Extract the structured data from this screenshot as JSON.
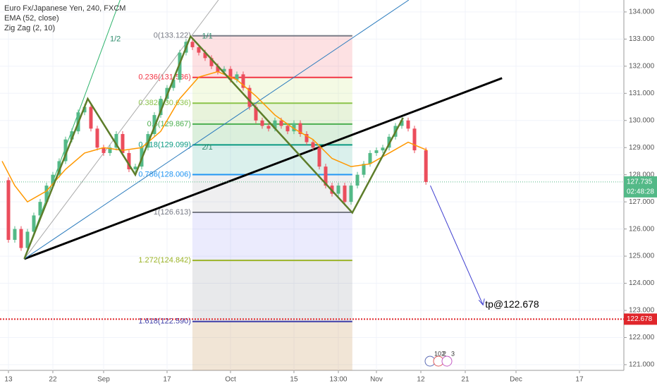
{
  "chart_data": {
    "type": "candlestick",
    "xlim": [
      -1.33,
      97
    ],
    "ylim": [
      120.79,
      134.44
    ],
    "grid": true,
    "xticks": [
      {
        "value": 0,
        "label": "13"
      },
      {
        "value": 7,
        "label": "22"
      },
      {
        "value": 15,
        "label": "Sep"
      },
      {
        "value": 25,
        "label": "17"
      },
      {
        "value": 35,
        "label": "Oct"
      },
      {
        "value": 45,
        "label": "15"
      },
      {
        "value": 52,
        "label": "13:00"
      },
      {
        "value": 58,
        "label": "Nov"
      },
      {
        "value": 65,
        "label": "12"
      },
      {
        "value": 72,
        "label": "21"
      },
      {
        "value": 80,
        "label": "Dec"
      },
      {
        "value": 90,
        "label": "17"
      }
    ],
    "yticks": [
      {
        "value": 121,
        "label": "121.000"
      },
      {
        "value": 122,
        "label": "122.000"
      },
      {
        "value": 123,
        "label": "123.000"
      },
      {
        "value": 124,
        "label": "124.000"
      },
      {
        "value": 125,
        "label": "125.000"
      },
      {
        "value": 126,
        "label": "126.000"
      },
      {
        "value": 127,
        "label": "127.000"
      },
      {
        "value": 128,
        "label": "128.000"
      },
      {
        "value": 129,
        "label": "129.000"
      },
      {
        "value": 130,
        "label": "130.000"
      },
      {
        "value": 131,
        "label": "131.000"
      },
      {
        "value": 132,
        "label": "132.000"
      },
      {
        "value": 133,
        "label": "133.000"
      },
      {
        "value": 134,
        "label": "134.000"
      }
    ],
    "series": [
      {
        "name": "Euro Fx/Japanese Yen, 240, FXCM",
        "up_color": "#53b987",
        "down_color": "#eb4d5c",
        "x": [
          -1,
          0,
          1,
          2,
          3,
          4,
          5,
          6,
          7,
          8,
          9,
          10,
          11,
          12,
          13,
          14,
          15,
          16,
          17,
          18,
          19,
          20,
          21,
          22,
          23,
          24,
          25,
          26,
          27,
          28,
          29,
          30,
          31,
          32,
          33,
          34,
          35,
          36,
          37,
          38,
          39,
          40,
          41,
          42,
          43,
          44,
          45,
          46,
          47,
          48,
          49,
          50,
          51,
          52,
          53,
          54,
          55,
          56,
          57,
          58,
          59,
          60,
          61,
          62,
          63,
          64,
          65.8
        ],
        "values": [
          127.8,
          125.6,
          126.0,
          125.3,
          125.9,
          126.5,
          127.0,
          127.6,
          128.0,
          128.5,
          129.3,
          129.6,
          130.3,
          130.5,
          129.7,
          129.0,
          128.8,
          129.0,
          129.5,
          128.8,
          128.2,
          128.3,
          129.0,
          129.5,
          130.2,
          130.8,
          131.2,
          131.5,
          132.5,
          132.9,
          132.7,
          132.5,
          132.3,
          132.0,
          131.8,
          131.9,
          131.5,
          131.7,
          131.2,
          130.5,
          130.0,
          129.8,
          129.7,
          130.0,
          129.8,
          129.6,
          129.9,
          129.5,
          129.2,
          129.0,
          128.3,
          127.6,
          127.3,
          127.6,
          127.0,
          127.6,
          128.0,
          128.4,
          128.8,
          128.9,
          129.0,
          129.4,
          129.8,
          130.0,
          129.7,
          128.9,
          127.735
        ]
      },
      {
        "name": "EMA (52, close)",
        "color": "#ff9800",
        "x": [
          -1,
          1,
          3,
          6,
          9,
          12,
          15,
          18,
          21,
          24,
          27,
          30,
          33,
          36,
          39,
          42,
          45,
          48,
          51,
          54,
          57,
          60,
          63,
          66
        ],
        "values": [
          128.5,
          127.6,
          127.0,
          127.4,
          128.2,
          128.8,
          129.0,
          128.9,
          129.0,
          129.6,
          130.8,
          131.6,
          131.8,
          131.5,
          130.9,
          130.2,
          129.7,
          129.3,
          128.6,
          128.3,
          128.4,
          128.8,
          129.2,
          128.9
        ]
      },
      {
        "name": "Zig Zag (2, 10)",
        "color": "#5d7d2a",
        "x": [
          2.5,
          12.5,
          20,
          28.7,
          54.2,
          62.2
        ],
        "values": [
          124.9,
          130.8,
          128.0,
          133.1,
          126.6,
          130.1
        ]
      }
    ],
    "fib": {
      "x": [
        29,
        54.2
      ],
      "levels": [
        {
          "value": 133.122,
          "label": "0(133.122)",
          "color": "#787b86",
          "fill": "rgba(242,54,69,0.15)"
        },
        {
          "value": 131.586,
          "label": "0.236(131.586)",
          "color": "#f23645",
          "fill": "rgba(200,230,120,0.2)"
        },
        {
          "value": 130.636,
          "label": "0.382(130.636)",
          "color": "#8bc34a",
          "fill": "rgba(139,195,74,0.2)"
        },
        {
          "value": 129.867,
          "label": "0.5(129.867)",
          "color": "#4caf50",
          "fill": "rgba(76,175,80,0.2)"
        },
        {
          "value": 129.099,
          "label": "0.618(129.099)",
          "color": "#089981",
          "fill": "rgba(8,153,129,0.15)"
        },
        {
          "value": 128.006,
          "label": "0.786(128.006)",
          "color": "#2196f3",
          "fill": "rgba(120,123,134,0.12)"
        },
        {
          "value": 126.613,
          "label": "1(126.613)",
          "color": "#787b86",
          "fill": "rgba(120,120,240,0.15)"
        },
        {
          "value": 124.842,
          "label": "1.272(124.842)",
          "color": "#9bb327",
          "fill": "rgba(100,110,120,0.15)"
        },
        {
          "value": 122.59,
          "label": "1.618(122.590)",
          "color": "#3f3fa8",
          "fill": "rgba(200,150,90,0.25)"
        }
      ]
    },
    "lines": [
      {
        "color": "#000000",
        "width": 3,
        "x": [
          2.5,
          77.8
        ],
        "values": [
          124.9,
          131.56
        ]
      },
      {
        "color": "#2a7bbd",
        "width": 1,
        "x": [
          2.5,
          63.1
        ],
        "values": [
          124.9,
          134.44
        ]
      },
      {
        "color": "#aaaaaa",
        "width": 1,
        "x": [
          2.5,
          33.1
        ],
        "values": [
          124.9,
          134.44
        ]
      },
      {
        "color": "#2db36b",
        "width": 1,
        "x": [
          2.5,
          17.6
        ],
        "values": [
          124.9,
          134.44
        ]
      }
    ],
    "annotations": [
      {
        "text": "1/2",
        "x": 16,
        "value": 133.0
      },
      {
        "text": "1/1",
        "x": 30.5,
        "value": 133.1
      },
      {
        "text": "2/1",
        "x": 30.5,
        "value": 129.0
      }
    ],
    "arrow": {
      "color": "#3f3fd0",
      "x": [
        66.5,
        74.8
      ],
      "values": [
        127.6,
        123.2
      ],
      "text": "tp@122.678"
    },
    "last_price": {
      "value": 127.735,
      "label": "127.735",
      "color": "#53b987",
      "countdown": "02:48:28"
    },
    "target": {
      "value": 122.678,
      "label": "122.678",
      "color": "#e0262b"
    },
    "events": [
      "102",
      "2",
      "3"
    ]
  }
}
